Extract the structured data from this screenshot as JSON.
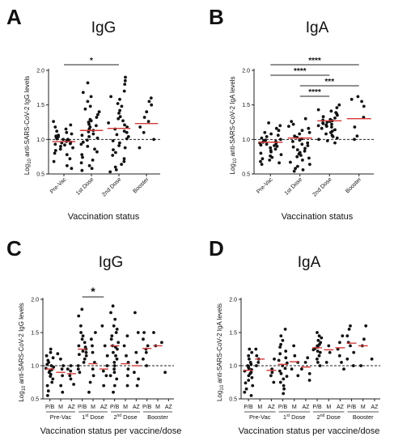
{
  "chart_data": [
    {
      "type": "scatter",
      "panel_letter": "A",
      "title": "IgG",
      "ylabel": "Log₁₀ anti-SARS-CoV-2 IgG levels",
      "ylabel_main": "anti-SARS-CoV-2 IgG levels",
      "xlabel": "Vaccination status",
      "ylim": [
        0.5,
        2.0
      ],
      "yticks": [
        "0.5",
        "1.0",
        "1.5",
        "2.0"
      ],
      "reference_line": 1.0,
      "categories": [
        "Pre-Vac",
        "1st Dose",
        "2nd Dose",
        "Booster"
      ],
      "medians": [
        0.97,
        1.13,
        1.16,
        1.23
      ],
      "points": [
        [
          1.26,
          1.21,
          1.18,
          1.15,
          1.12,
          1.1,
          1.08,
          1.06,
          1.05,
          1.04,
          1.03,
          1.02,
          1.01,
          1.0,
          1.0,
          0.99,
          0.98,
          0.97,
          0.96,
          0.95,
          0.94,
          0.93,
          0.92,
          0.9,
          0.88,
          0.86,
          0.84,
          0.8,
          0.78,
          0.72,
          0.68,
          0.62,
          0.58
        ],
        [
          1.82,
          1.68,
          1.62,
          1.55,
          1.48,
          1.44,
          1.4,
          1.36,
          1.32,
          1.29,
          1.27,
          1.25,
          1.22,
          1.2,
          1.18,
          1.15,
          1.13,
          1.11,
          1.08,
          1.06,
          1.04,
          1.02,
          0.99,
          0.96,
          0.93,
          0.9,
          0.86,
          0.82,
          0.78,
          0.74,
          0.7,
          0.66,
          0.62,
          0.58,
          0.55
        ],
        [
          1.9,
          1.85,
          1.8,
          1.7,
          1.62,
          1.58,
          1.52,
          1.48,
          1.42,
          1.38,
          1.33,
          1.3,
          1.27,
          1.24,
          1.21,
          1.18,
          1.15,
          1.12,
          1.1,
          1.07,
          1.04,
          1.01,
          0.98,
          0.95,
          0.91,
          0.88,
          0.85,
          0.81,
          0.77,
          0.72,
          0.68,
          0.64,
          0.6,
          0.56,
          0.53
        ],
        [
          1.6,
          1.55,
          1.5,
          1.4,
          1.32,
          1.26,
          1.18,
          1.1,
          1.0,
          0.88
        ]
      ],
      "significance": [
        {
          "from": "Pre-Vac",
          "to": "2nd Dose",
          "label": "*"
        }
      ]
    },
    {
      "type": "scatter",
      "panel_letter": "B",
      "title": "IgA",
      "ylabel": "Log₁₀ anti-SARS-CoV-2 IgA levels",
      "ylabel_main": "anti-SARS-CoV-2 IgA levels",
      "xlabel": "Vaccination status",
      "ylim": [
        0.5,
        2.0
      ],
      "yticks": [
        "0.5",
        "1.0",
        "1.5",
        "2.0"
      ],
      "reference_line": 1.0,
      "categories": [
        "Pre-Vac",
        "1st Dose",
        "2nd Dose",
        "Booster"
      ],
      "medians": [
        0.96,
        1.02,
        1.27,
        1.3
      ],
      "points": [
        [
          1.24,
          1.2,
          1.16,
          1.13,
          1.1,
          1.08,
          1.06,
          1.04,
          1.02,
          1.0,
          0.99,
          0.98,
          0.97,
          0.96,
          0.95,
          0.94,
          0.93,
          0.92,
          0.91,
          0.9,
          0.88,
          0.86,
          0.84,
          0.82,
          0.8,
          0.78,
          0.76,
          0.74,
          0.72,
          0.7,
          0.68,
          0.66,
          0.64
        ],
        [
          1.3,
          1.26,
          1.22,
          1.19,
          1.16,
          1.13,
          1.1,
          1.08,
          1.05,
          1.03,
          1.01,
          0.99,
          0.97,
          0.95,
          0.93,
          0.91,
          0.89,
          0.87,
          0.85,
          0.83,
          0.81,
          0.79,
          0.77,
          0.75,
          0.73,
          0.7,
          0.67,
          0.64,
          0.61,
          0.58,
          0.56,
          0.54
        ],
        [
          1.5,
          1.46,
          1.43,
          1.41,
          1.39,
          1.37,
          1.35,
          1.33,
          1.31,
          1.29,
          1.28,
          1.27,
          1.26,
          1.25,
          1.24,
          1.23,
          1.22,
          1.21,
          1.2,
          1.19,
          1.18,
          1.16,
          1.14,
          1.12,
          1.1,
          1.08,
          1.06,
          1.04,
          1.02,
          1.0,
          0.98,
          0.95
        ],
        [
          1.62,
          1.58,
          1.55,
          1.48,
          1.32,
          1.18,
          1.05,
          1.0
        ]
      ],
      "significance": [
        {
          "from": "Pre-Vac",
          "to": "Booster",
          "label": "****"
        },
        {
          "from": "Pre-Vac",
          "to": "2nd Dose",
          "label": "****"
        },
        {
          "from": "1st Dose",
          "to": "Booster",
          "label": "***"
        },
        {
          "from": "1st Dose",
          "to": "2nd Dose",
          "label": "****"
        }
      ]
    },
    {
      "type": "scatter",
      "panel_letter": "C",
      "title": "IgG",
      "ylabel": "Log₁₀ anti-SARS-CoV-2 IgG levels",
      "ylabel_main": "anti-SARS-CoV-2 IgG levels",
      "xlabel": "Vaccination status per vaccine/dose",
      "ylim": [
        0.5,
        2.0
      ],
      "yticks": [
        "0.5",
        "1.0",
        "1.5",
        "2.0"
      ],
      "reference_line": 1.0,
      "subcategories": [
        "P/B",
        "M",
        "AZ",
        "P/B",
        "M",
        "AZ",
        "P/B",
        "M",
        "AZ",
        "P/B",
        "M",
        "AZ"
      ],
      "groups": [
        {
          "label": "Pre-Vac",
          "sup": ""
        },
        {
          "label": "1",
          "sup": "st",
          "suffix": " Dose"
        },
        {
          "label": "2",
          "sup": "nd",
          "suffix": " Dose"
        },
        {
          "label": "Booster",
          "sup": ""
        }
      ],
      "medians": [
        0.95,
        0.9,
        0.88,
        1.25,
        1.03,
        0.95,
        1.3,
        1.03,
        1.0,
        1.26,
        1.3,
        null
      ],
      "points": [
        [
          1.25,
          1.2,
          1.15,
          1.12,
          1.08,
          1.05,
          1.02,
          1.0,
          0.98,
          0.96,
          0.94,
          0.92,
          0.9,
          0.87,
          0.84,
          0.8,
          0.75,
          0.7,
          0.62,
          0.55
        ],
        [
          1.18,
          1.1,
          1.0,
          0.95,
          0.85,
          0.7,
          0.6
        ],
        [
          1.0,
          0.95,
          0.92,
          0.85,
          0.8,
          0.72
        ],
        [
          1.85,
          1.75,
          1.6,
          1.5,
          1.45,
          1.4,
          1.35,
          1.3,
          1.28,
          1.25,
          1.22,
          1.2,
          1.17,
          1.15,
          1.1,
          1.05,
          1.0,
          0.95,
          0.9
        ],
        [
          1.5,
          1.4,
          1.3,
          1.2,
          1.05,
          0.95,
          0.85,
          0.75,
          0.6
        ],
        [
          1.6,
          1.3,
          1.15,
          1.0,
          0.92,
          0.85,
          0.7
        ],
        [
          1.9,
          1.8,
          1.7,
          1.6,
          1.55,
          1.5,
          1.45,
          1.4,
          1.35,
          1.3,
          1.28,
          1.25,
          1.2,
          1.15,
          1.1,
          1.05,
          1.0,
          0.95,
          0.9,
          0.85,
          0.8,
          0.7,
          0.6
        ],
        [
          1.45,
          1.3,
          1.15,
          1.05,
          0.95,
          0.85,
          0.7
        ],
        [
          1.8,
          1.5,
          1.2,
          1.05,
          0.9,
          0.8,
          0.7
        ],
        [
          1.5,
          1.4,
          1.3,
          1.25,
          1.2,
          1.1,
          1.0
        ],
        [
          1.5,
          1.35,
          1.3
        ],
        [
          0.9
        ]
      ],
      "significance": [
        {
          "from": "1st P/B",
          "to": "1st AZ",
          "label": "*"
        }
      ]
    },
    {
      "type": "scatter",
      "panel_letter": "D",
      "title": "IgA",
      "ylabel": "Log₁₀ anti-SARS-CoV-2 IgA levels",
      "ylabel_main": "anti-SARS-CoV-2 IgA levels",
      "xlabel": "Vaccination status per vaccine/dose",
      "ylim": [
        0.5,
        2.0
      ],
      "yticks": [
        "0.5",
        "1.0",
        "1.5",
        "2.0"
      ],
      "reference_line": 1.0,
      "subcategories": [
        "P/B",
        "M",
        "AZ",
        "P/B",
        "M",
        "AZ",
        "P/B",
        "M",
        "AZ",
        "P/B",
        "M",
        "AZ"
      ],
      "groups": [
        {
          "label": "Pre-Vac",
          "sup": ""
        },
        {
          "label": "1",
          "sup": "st",
          "suffix": " Dose"
        },
        {
          "label": "2",
          "sup": "nd",
          "suffix": " Dose"
        },
        {
          "label": "Booster",
          "sup": ""
        }
      ],
      "medians": [
        0.93,
        1.1,
        0.93,
        1.02,
        1.06,
        0.98,
        1.27,
        1.24,
        1.27,
        1.34,
        1.3,
        null
      ],
      "points": [
        [
          1.25,
          1.2,
          1.15,
          1.1,
          1.05,
          1.02,
          1.0,
          0.98,
          0.96,
          0.94,
          0.92,
          0.9,
          0.88,
          0.85,
          0.82,
          0.78,
          0.74,
          0.7,
          0.65,
          0.6,
          0.55
        ],
        [
          1.25,
          1.15,
          1.1,
          1.05,
          1.0
        ],
        [
          1.1,
          0.95,
          0.9,
          0.85,
          0.75
        ],
        [
          1.55,
          1.45,
          1.38,
          1.32,
          1.28,
          1.22,
          1.18,
          1.12,
          1.08,
          1.04,
          1.0,
          0.96,
          0.92,
          0.88,
          0.84,
          0.8,
          0.75,
          0.7,
          0.65,
          0.58
        ],
        [
          1.3,
          1.15,
          1.05,
          0.95,
          0.85
        ],
        [
          1.12,
          1.05,
          0.95,
          0.88,
          0.78
        ],
        [
          1.5,
          1.45,
          1.42,
          1.38,
          1.35,
          1.32,
          1.3,
          1.28,
          1.26,
          1.24,
          1.22,
          1.2,
          1.15,
          1.1,
          1.05,
          1.0
        ],
        [
          1.3,
          1.2,
          1.05
        ],
        [
          1.45,
          1.35,
          1.25,
          1.15,
          1.05,
          0.95
        ],
        [
          1.6,
          1.55,
          1.45,
          1.35,
          1.3,
          1.2,
          1.1,
          1.0
        ],
        [
          1.6,
          1.4,
          1.3,
          1.0
        ],
        [
          1.1
        ]
      ],
      "significance": []
    }
  ]
}
